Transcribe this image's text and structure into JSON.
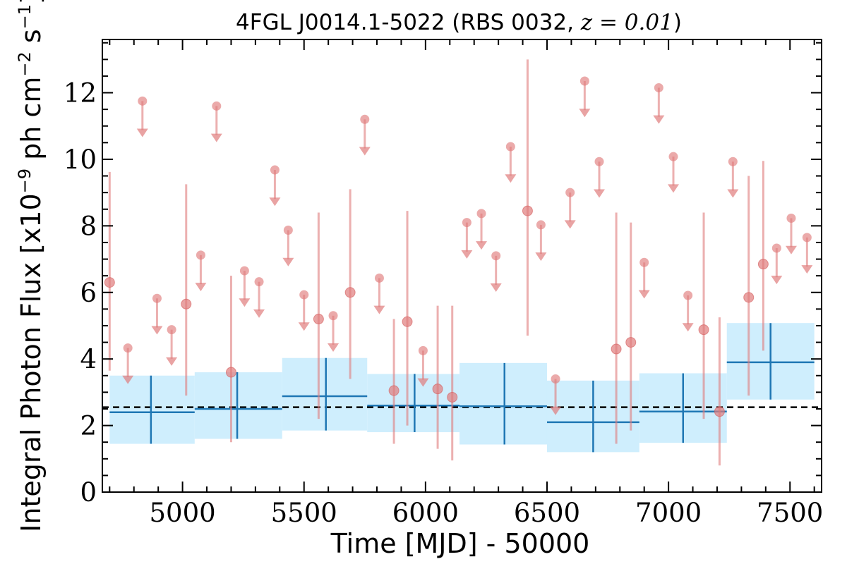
{
  "chart_data": {
    "type": "scatter",
    "title": {
      "prefix": "4FGL J0014.1-5022 (RBS 0032, ",
      "math": "z = 0.01",
      "suffix": ")"
    },
    "xlabel": "Time [MJD] - 50000",
    "ylabel": {
      "prefix": "Integral Photon Flux [x10",
      "exp1": "−9",
      "mid": " ph cm",
      "exp2": "−2",
      "mid2": " s",
      "exp3": "−1",
      "suffix": "]"
    },
    "xlim": [
      4670,
      7630
    ],
    "ylim": [
      0,
      13.6
    ],
    "x_ticks": [
      5000,
      5500,
      6000,
      6500,
      7000,
      7500
    ],
    "x_tick_labels": [
      "5000",
      "5500",
      "6000",
      "6500",
      "7000",
      "7500"
    ],
    "y_ticks": [
      0,
      2,
      4,
      6,
      8,
      10,
      12
    ],
    "y_tick_labels": [
      "0",
      "2",
      "4",
      "6",
      "8",
      "10",
      "12"
    ],
    "grid": false,
    "colors": {
      "points": "#e07c7c",
      "bins": "#1f77b4",
      "band": "#cfeefd",
      "mean_line": "#000000"
    },
    "mean_flux": 2.55,
    "detections": [
      {
        "x": 4700,
        "y": 6.3,
        "lo": 3.65,
        "hi": 9.62
      },
      {
        "x": 5015,
        "y": 5.65,
        "lo": 2.9,
        "hi": 9.25
      },
      {
        "x": 5200,
        "y": 3.6,
        "lo": 1.5,
        "hi": 6.5
      },
      {
        "x": 5560,
        "y": 5.2,
        "lo": 2.2,
        "hi": 8.4
      },
      {
        "x": 5690,
        "y": 6.0,
        "lo": 3.4,
        "hi": 9.1
      },
      {
        "x": 5870,
        "y": 3.05,
        "lo": 1.45,
        "hi": 5.2
      },
      {
        "x": 5925,
        "y": 5.12,
        "lo": 2.0,
        "hi": 8.45
      },
      {
        "x": 6050,
        "y": 3.1,
        "lo": 1.3,
        "hi": 5.6
      },
      {
        "x": 6110,
        "y": 2.85,
        "lo": 0.95,
        "hi": 5.6
      },
      {
        "x": 6420,
        "y": 8.45,
        "lo": 4.7,
        "hi": 13.0
      },
      {
        "x": 6785,
        "y": 4.3,
        "lo": 1.45,
        "hi": 8.4
      },
      {
        "x": 6845,
        "y": 4.5,
        "lo": 1.85,
        "hi": 8.1
      },
      {
        "x": 7145,
        "y": 4.88,
        "lo": 2.2,
        "hi": 8.4
      },
      {
        "x": 7210,
        "y": 2.42,
        "lo": 0.8,
        "hi": 5.25
      },
      {
        "x": 7330,
        "y": 5.85,
        "lo": 2.9,
        "hi": 9.5
      },
      {
        "x": 7390,
        "y": 6.85,
        "lo": 4.25,
        "hi": 9.95
      }
    ],
    "upper_limits": [
      {
        "x": 4775,
        "y": 4.33
      },
      {
        "x": 4835,
        "y": 11.75
      },
      {
        "x": 4895,
        "y": 5.82
      },
      {
        "x": 4955,
        "y": 4.88
      },
      {
        "x": 5075,
        "y": 7.12
      },
      {
        "x": 5140,
        "y": 11.6
      },
      {
        "x": 5255,
        "y": 6.65
      },
      {
        "x": 5315,
        "y": 6.32
      },
      {
        "x": 5380,
        "y": 9.68
      },
      {
        "x": 5435,
        "y": 7.87
      },
      {
        "x": 5500,
        "y": 5.93
      },
      {
        "x": 5620,
        "y": 5.3
      },
      {
        "x": 5750,
        "y": 11.2
      },
      {
        "x": 5810,
        "y": 6.43
      },
      {
        "x": 5990,
        "y": 4.25
      },
      {
        "x": 6170,
        "y": 8.1
      },
      {
        "x": 6230,
        "y": 8.37
      },
      {
        "x": 6290,
        "y": 7.1
      },
      {
        "x": 6350,
        "y": 10.38
      },
      {
        "x": 6475,
        "y": 8.03
      },
      {
        "x": 6535,
        "y": 3.4
      },
      {
        "x": 6595,
        "y": 9.0
      },
      {
        "x": 6655,
        "y": 12.35
      },
      {
        "x": 6715,
        "y": 9.93
      },
      {
        "x": 6900,
        "y": 6.9
      },
      {
        "x": 6960,
        "y": 12.15
      },
      {
        "x": 7020,
        "y": 10.08
      },
      {
        "x": 7080,
        "y": 5.91
      },
      {
        "x": 7265,
        "y": 9.93
      },
      {
        "x": 7445,
        "y": 7.33
      },
      {
        "x": 7505,
        "y": 8.23
      },
      {
        "x": 7570,
        "y": 7.65
      }
    ],
    "ul_arrow_length": 1.0,
    "bins": [
      {
        "x0": 4700,
        "x1": 5050,
        "xc": 4870,
        "y": 2.4,
        "lo": 1.45,
        "hi": 3.5
      },
      {
        "x0": 5050,
        "x1": 5410,
        "xc": 5225,
        "y": 2.5,
        "lo": 1.6,
        "hi": 3.6
      },
      {
        "x0": 5410,
        "x1": 5760,
        "xc": 5590,
        "y": 2.88,
        "lo": 1.85,
        "hi": 4.03
      },
      {
        "x0": 5760,
        "x1": 6140,
        "xc": 5955,
        "y": 2.6,
        "lo": 1.8,
        "hi": 3.55
      },
      {
        "x0": 6140,
        "x1": 6500,
        "xc": 6325,
        "y": 2.58,
        "lo": 1.43,
        "hi": 3.88
      },
      {
        "x0": 6500,
        "x1": 6880,
        "xc": 6690,
        "y": 2.1,
        "lo": 1.2,
        "hi": 3.35
      },
      {
        "x0": 6880,
        "x1": 7240,
        "xc": 7060,
        "y": 2.42,
        "lo": 1.48,
        "hi": 3.57
      },
      {
        "x0": 7240,
        "x1": 7600,
        "xc": 7420,
        "y": 3.9,
        "lo": 2.78,
        "hi": 5.08
      }
    ]
  }
}
